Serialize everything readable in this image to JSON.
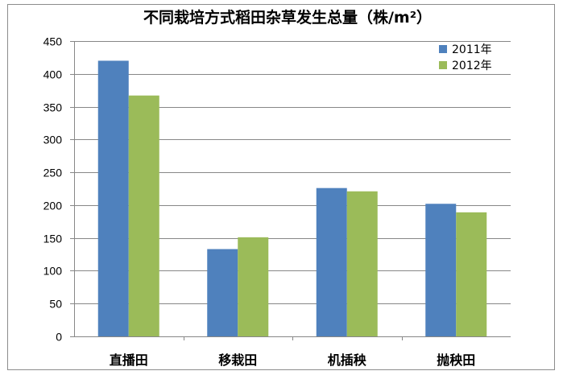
{
  "chart_data": {
    "type": "bar",
    "title": "不同栽培方式稻田杂草发生总量（株/m²）",
    "xlabel": "",
    "ylabel": "",
    "categories": [
      "直播田",
      "移栽田",
      "机插秧",
      "抛秧田"
    ],
    "series": [
      {
        "name": "2011年",
        "color": "#4F81BD",
        "values": [
          420,
          133,
          226,
          202
        ]
      },
      {
        "name": "2012年",
        "color": "#9BBB59",
        "values": [
          367,
          151,
          221,
          189
        ]
      }
    ],
    "ylim": [
      0,
      450
    ],
    "yticks": [
      0,
      50,
      100,
      150,
      200,
      250,
      300,
      350,
      400,
      450
    ],
    "grid": true,
    "gridColor": "#878787",
    "legend_position": "top-right"
  }
}
